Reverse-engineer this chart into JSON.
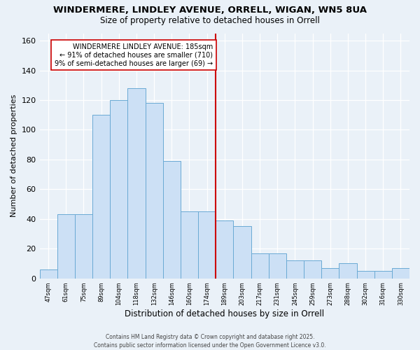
{
  "title": "WINDERMERE, LINDLEY AVENUE, ORRELL, WIGAN, WN5 8UA",
  "subtitle": "Size of property relative to detached houses in Orrell",
  "xlabel": "Distribution of detached houses by size in Orrell",
  "ylabel": "Number of detached properties",
  "bin_labels": [
    "47sqm",
    "61sqm",
    "75sqm",
    "89sqm",
    "104sqm",
    "118sqm",
    "132sqm",
    "146sqm",
    "160sqm",
    "174sqm",
    "189sqm",
    "203sqm",
    "217sqm",
    "231sqm",
    "245sqm",
    "259sqm",
    "273sqm",
    "288sqm",
    "302sqm",
    "316sqm",
    "330sqm"
  ],
  "bar_heights": [
    6,
    43,
    43,
    110,
    120,
    128,
    118,
    79,
    45,
    45,
    39,
    35,
    17,
    17,
    12,
    12,
    7,
    10,
    5,
    5,
    7
  ],
  "bar_color": "#cce0f5",
  "bar_edge_color": "#6aaad4",
  "property_label": "WINDERMERE LINDLEY AVENUE: 185sqm",
  "annotation_line1": "← 91% of detached houses are smaller (710)",
  "annotation_line2": "9% of semi-detached houses are larger (69) →",
  "vline_color": "#cc0000",
  "annotation_box_edge": "#cc0000",
  "footnote": "Contains HM Land Registry data © Crown copyright and database right 2025.\nContains public sector information licensed under the Open Government Licence v3.0.",
  "background_color": "#eaf1f8",
  "plot_bg_color": "#eaf1f8",
  "figsize": [
    6.0,
    5.0
  ],
  "dpi": 100,
  "ylim": [
    0,
    165
  ],
  "yticks": [
    0,
    20,
    40,
    60,
    80,
    100,
    120,
    140,
    160
  ],
  "vline_bin_index": 10
}
